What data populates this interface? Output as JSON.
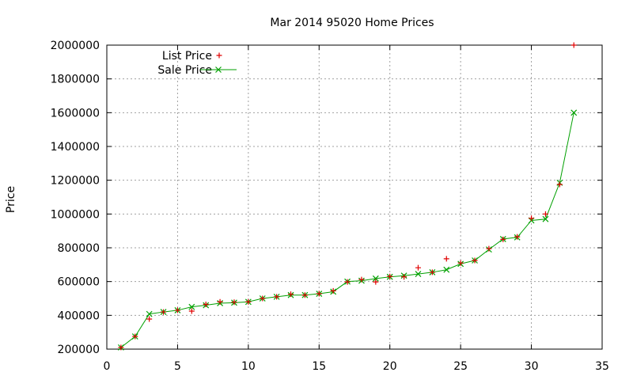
{
  "chart_data": {
    "type": "line",
    "title": "Mar 2014 95020 Home Prices",
    "xlabel": "",
    "ylabel": "Price",
    "xlim": [
      0,
      35
    ],
    "ylim": [
      200000,
      2000000
    ],
    "xticks": [
      0,
      5,
      10,
      15,
      20,
      25,
      30,
      35
    ],
    "yticks": [
      200000,
      400000,
      600000,
      800000,
      1000000,
      1200000,
      1400000,
      1600000,
      1800000,
      2000000
    ],
    "grid": true,
    "legend_position": "top-left",
    "series": [
      {
        "name": "List Price",
        "style": "points",
        "marker": "+",
        "color": "#e00000",
        "x": [
          1,
          2,
          3,
          4,
          5,
          6,
          7,
          8,
          9,
          10,
          11,
          12,
          13,
          14,
          15,
          16,
          17,
          18,
          19,
          20,
          21,
          22,
          23,
          24,
          25,
          26,
          27,
          28,
          29,
          30,
          31,
          32,
          33
        ],
        "values": [
          210000,
          275000,
          378000,
          420000,
          430000,
          425000,
          465000,
          480000,
          478000,
          480000,
          500000,
          510000,
          525000,
          520000,
          528000,
          545000,
          598000,
          612000,
          598000,
          630000,
          628000,
          682000,
          655000,
          735000,
          710000,
          725000,
          795000,
          850000,
          865000,
          975000,
          1000000,
          1175000,
          2000000
        ]
      },
      {
        "name": "Sale Price",
        "style": "linespoints",
        "marker": "x",
        "color": "#00a000",
        "x": [
          1,
          2,
          3,
          4,
          5,
          6,
          7,
          8,
          9,
          10,
          11,
          12,
          13,
          14,
          15,
          16,
          17,
          18,
          19,
          20,
          21,
          22,
          23,
          24,
          25,
          26,
          27,
          28,
          29,
          30,
          31,
          32,
          33
        ],
        "values": [
          210000,
          275000,
          408000,
          420000,
          430000,
          450000,
          460000,
          472000,
          475000,
          480000,
          500000,
          510000,
          520000,
          520000,
          528000,
          540000,
          600000,
          605000,
          618000,
          628000,
          635000,
          645000,
          655000,
          670000,
          705000,
          725000,
          790000,
          852000,
          862000,
          962000,
          970000,
          1185000,
          1600000
        ]
      }
    ]
  }
}
